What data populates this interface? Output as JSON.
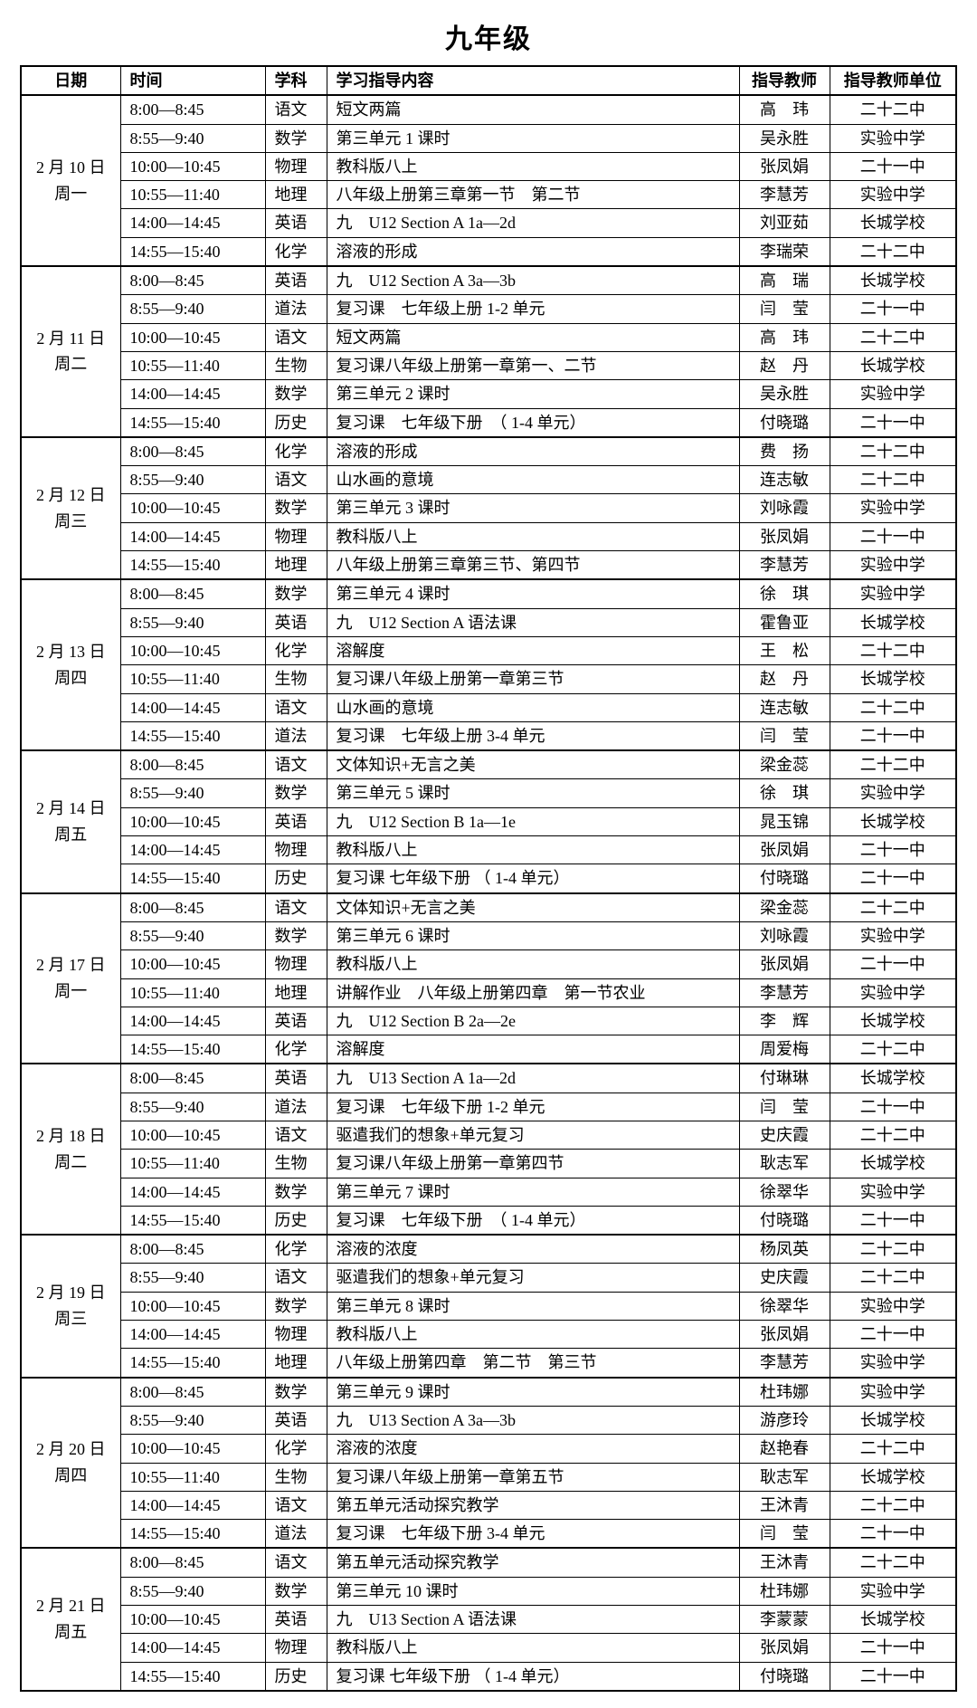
{
  "title": "九年级",
  "headers": {
    "date": "日期",
    "time": "时间",
    "subject": "学科",
    "content": "学习指导内容",
    "teacher": "指导教师",
    "school": "指导教师单位"
  },
  "days": [
    {
      "date": "2 月 10 日",
      "weekday": "周一",
      "rows": [
        {
          "time": "8:00—8:45",
          "subject": "语文",
          "content": "短文两篇",
          "teacher": "高　玮",
          "school": "二十二中"
        },
        {
          "time": "8:55—9:40",
          "subject": "数学",
          "content": "第三单元 1 课时",
          "teacher": "吴永胜",
          "school": "实验中学"
        },
        {
          "time": "10:00—10:45",
          "subject": "物理",
          "content": "教科版八上",
          "teacher": "张凤娟",
          "school": "二十一中"
        },
        {
          "time": "10:55—11:40",
          "subject": "地理",
          "content": "八年级上册第三章第一节　第二节",
          "teacher": "李慧芳",
          "school": "实验中学"
        },
        {
          "time": "14:00—14:45",
          "subject": "英语",
          "content": "九　U12 Section A 1a—2d",
          "teacher": "刘亚茹",
          "school": "长城学校"
        },
        {
          "time": "14:55—15:40",
          "subject": "化学",
          "content": "溶液的形成",
          "teacher": "李瑞荣",
          "school": "二十二中"
        }
      ]
    },
    {
      "date": "2 月 11 日",
      "weekday": "周二",
      "rows": [
        {
          "time": "8:00—8:45",
          "subject": "英语",
          "content": "九　U12 Section A 3a—3b",
          "teacher": "高　瑞",
          "school": "长城学校"
        },
        {
          "time": "8:55—9:40",
          "subject": "道法",
          "content": "复习课　七年级上册 1-2 单元",
          "teacher": "闫　莹",
          "school": "二十一中"
        },
        {
          "time": "10:00—10:45",
          "subject": "语文",
          "content": "短文两篇",
          "teacher": "高　玮",
          "school": "二十二中"
        },
        {
          "time": "10:55—11:40",
          "subject": "生物",
          "content": "复习课八年级上册第一章第一、二节",
          "teacher": "赵　丹",
          "school": "长城学校"
        },
        {
          "time": "14:00—14:45",
          "subject": "数学",
          "content": "第三单元 2 课时",
          "teacher": "吴永胜",
          "school": "实验中学"
        },
        {
          "time": "14:55—15:40",
          "subject": "历史",
          "content": "复习课　七年级下册　（ 1-4 单元）",
          "teacher": "付晓璐",
          "school": "二十一中"
        }
      ]
    },
    {
      "date": "2 月 12 日",
      "weekday": "周三",
      "rows": [
        {
          "time": "8:00—8:45",
          "subject": "化学",
          "content": "溶液的形成",
          "teacher": "费　扬",
          "school": "二十二中"
        },
        {
          "time": "8:55—9:40",
          "subject": "语文",
          "content": "山水画的意境",
          "teacher": "连志敏",
          "school": "二十二中"
        },
        {
          "time": "10:00—10:45",
          "subject": "数学",
          "content": "第三单元 3 课时",
          "teacher": "刘咏霞",
          "school": "实验中学"
        },
        {
          "time": "14:00—14:45",
          "subject": "物理",
          "content": "教科版八上",
          "teacher": "张凤娟",
          "school": "二十一中"
        },
        {
          "time": "14:55—15:40",
          "subject": "地理",
          "content": "八年级上册第三章第三节、第四节",
          "teacher": "李慧芳",
          "school": "实验中学"
        }
      ]
    },
    {
      "date": "2 月 13 日",
      "weekday": "周四",
      "rows": [
        {
          "time": "8:00—8:45",
          "subject": "数学",
          "content": "第三单元 4 课时",
          "teacher": "徐　琪",
          "school": "实验中学"
        },
        {
          "time": "8:55—9:40",
          "subject": "英语",
          "content": "九　U12 Section A 语法课",
          "teacher": "霍鲁亚",
          "school": "长城学校"
        },
        {
          "time": "10:00—10:45",
          "subject": "化学",
          "content": "溶解度",
          "teacher": "王　松",
          "school": "二十二中"
        },
        {
          "time": "10:55—11:40",
          "subject": "生物",
          "content": "复习课八年级上册第一章第三节",
          "teacher": "赵　丹",
          "school": "长城学校"
        },
        {
          "time": "14:00—14:45",
          "subject": "语文",
          "content": "山水画的意境",
          "teacher": "连志敏",
          "school": "二十二中"
        },
        {
          "time": "14:55—15:40",
          "subject": "道法",
          "content": "复习课　七年级上册 3-4 单元",
          "teacher": "闫　莹",
          "school": "二十一中"
        }
      ]
    },
    {
      "date": "2 月 14 日",
      "weekday": "周五",
      "rows": [
        {
          "time": "8:00—8:45",
          "subject": "语文",
          "content": "文体知识+无言之美",
          "teacher": "梁金蕊",
          "school": "二十二中"
        },
        {
          "time": "8:55—9:40",
          "subject": "数学",
          "content": "第三单元 5 课时",
          "teacher": "徐　琪",
          "school": "实验中学"
        },
        {
          "time": "10:00—10:45",
          "subject": "英语",
          "content": "九　U12 Section B 1a—1e",
          "teacher": "晁玉锦",
          "school": "长城学校"
        },
        {
          "time": "14:00—14:45",
          "subject": "物理",
          "content": "教科版八上",
          "teacher": "张凤娟",
          "school": "二十一中"
        },
        {
          "time": "14:55—15:40",
          "subject": "历史",
          "content": "复习课 七年级下册 （ 1-4 单元）",
          "teacher": "付晓璐",
          "school": "二十一中"
        }
      ]
    },
    {
      "date": "2 月 17 日",
      "weekday": "周一",
      "rows": [
        {
          "time": "8:00—8:45",
          "subject": "语文",
          "content": "文体知识+无言之美",
          "teacher": "梁金蕊",
          "school": "二十二中"
        },
        {
          "time": "8:55—9:40",
          "subject": "数学",
          "content": "第三单元 6 课时",
          "teacher": "刘咏霞",
          "school": "实验中学"
        },
        {
          "time": "10:00—10:45",
          "subject": "物理",
          "content": "教科版八上",
          "teacher": "张凤娟",
          "school": "二十一中"
        },
        {
          "time": "10:55—11:40",
          "subject": "地理",
          "content": "讲解作业　八年级上册第四章　第一节农业",
          "teacher": "李慧芳",
          "school": "实验中学"
        },
        {
          "time": "14:00—14:45",
          "subject": "英语",
          "content": "九　U12 Section B 2a—2e",
          "teacher": "李　辉",
          "school": "长城学校"
        },
        {
          "time": "14:55—15:40",
          "subject": "化学",
          "content": "溶解度",
          "teacher": "周爱梅",
          "school": "二十二中"
        }
      ]
    },
    {
      "date": "2 月 18 日",
      "weekday": "周二",
      "rows": [
        {
          "time": "8:00—8:45",
          "subject": "英语",
          "content": "九　U13 Section A 1a—2d",
          "teacher": "付琳琳",
          "school": "长城学校"
        },
        {
          "time": "8:55—9:40",
          "subject": "道法",
          "content": "复习课　七年级下册 1-2 单元",
          "teacher": "闫　莹",
          "school": "二十一中"
        },
        {
          "time": "10:00—10:45",
          "subject": "语文",
          "content": "驱遣我们的想象+单元复习",
          "teacher": "史庆霞",
          "school": "二十二中"
        },
        {
          "time": "10:55—11:40",
          "subject": "生物",
          "content": "复习课八年级上册第一章第四节",
          "teacher": "耿志军",
          "school": "长城学校"
        },
        {
          "time": "14:00—14:45",
          "subject": "数学",
          "content": "第三单元 7 课时",
          "teacher": "徐翠华",
          "school": "实验中学"
        },
        {
          "time": "14:55—15:40",
          "subject": "历史",
          "content": "复习课　七年级下册　（ 1-4 单元）",
          "teacher": "付晓璐",
          "school": "二十一中"
        }
      ]
    },
    {
      "date": "2 月 19 日",
      "weekday": "周三",
      "rows": [
        {
          "time": "8:00—8:45",
          "subject": "化学",
          "content": "溶液的浓度",
          "teacher": "杨凤英",
          "school": "二十二中"
        },
        {
          "time": "8:55—9:40",
          "subject": "语文",
          "content": "驱遣我们的想象+单元复习",
          "teacher": "史庆霞",
          "school": "二十二中"
        },
        {
          "time": "10:00—10:45",
          "subject": "数学",
          "content": "第三单元 8 课时",
          "teacher": "徐翠华",
          "school": "实验中学"
        },
        {
          "time": "14:00—14:45",
          "subject": "物理",
          "content": "教科版八上",
          "teacher": "张凤娟",
          "school": "二十一中"
        },
        {
          "time": "14:55—15:40",
          "subject": "地理",
          "content": "八年级上册第四章　第二节　第三节",
          "teacher": "李慧芳",
          "school": "实验中学"
        }
      ]
    },
    {
      "date": "2 月 20 日",
      "weekday": "周四",
      "rows": [
        {
          "time": "8:00—8:45",
          "subject": "数学",
          "content": "第三单元 9 课时",
          "teacher": "杜玮娜",
          "school": "实验中学"
        },
        {
          "time": "8:55—9:40",
          "subject": "英语",
          "content": "九　U13 Section A 3a—3b",
          "teacher": "游彦玲",
          "school": "长城学校"
        },
        {
          "time": "10:00—10:45",
          "subject": "化学",
          "content": "溶液的浓度",
          "teacher": "赵艳春",
          "school": "二十二中"
        },
        {
          "time": "10:55—11:40",
          "subject": "生物",
          "content": "复习课八年级上册第一章第五节",
          "teacher": "耿志军",
          "school": "长城学校"
        },
        {
          "time": "14:00—14:45",
          "subject": "语文",
          "content": "第五单元活动探究教学",
          "teacher": "王沐青",
          "school": "二十二中"
        },
        {
          "time": "14:55—15:40",
          "subject": "道法",
          "content": "复习课　七年级下册 3-4 单元",
          "teacher": "闫　莹",
          "school": "二十一中"
        }
      ]
    },
    {
      "date": "2 月 21 日",
      "weekday": "周五",
      "rows": [
        {
          "time": "8:00—8:45",
          "subject": "语文",
          "content": "第五单元活动探究教学",
          "teacher": "王沐青",
          "school": "二十二中"
        },
        {
          "time": "8:55—9:40",
          "subject": "数学",
          "content": "第三单元 10 课时",
          "teacher": "杜玮娜",
          "school": "实验中学"
        },
        {
          "time": "10:00—10:45",
          "subject": "英语",
          "content": "九　U13 Section A 语法课",
          "teacher": "李蒙蒙",
          "school": "长城学校"
        },
        {
          "time": "14:00—14:45",
          "subject": "物理",
          "content": "教科版八上",
          "teacher": "张凤娟",
          "school": "二十一中"
        },
        {
          "time": "14:55—15:40",
          "subject": "历史",
          "content": "复习课 七年级下册 （ 1-4 单元）",
          "teacher": "付晓璐",
          "school": "二十一中"
        }
      ]
    }
  ]
}
